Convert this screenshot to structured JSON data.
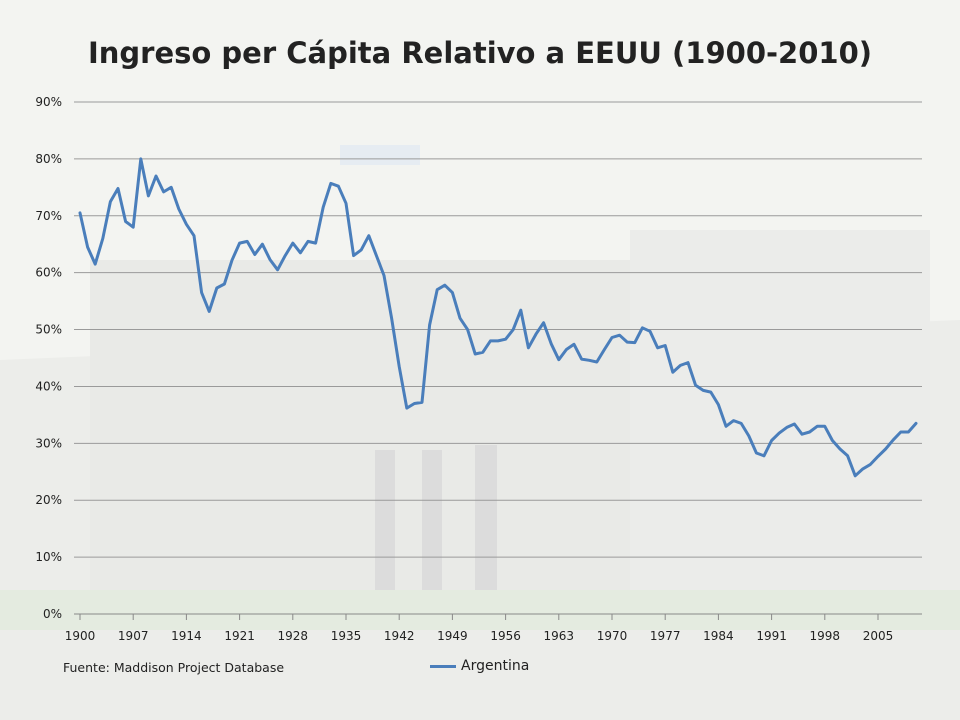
{
  "chart_data": {
    "type": "line",
    "title": "Ingreso per Cápita Relativo a EEUU (1900-2010)",
    "xlabel": "",
    "ylabel": "",
    "source": "Fuente: Maddison Project Database",
    "xlim": [
      1900,
      2010
    ],
    "ylim": [
      0,
      0.9
    ],
    "x_ticks": [
      1900,
      1907,
      1914,
      1921,
      1928,
      1935,
      1942,
      1949,
      1956,
      1963,
      1970,
      1977,
      1984,
      1991,
      1998,
      2005
    ],
    "x_tick_labels": [
      "1900",
      "1907",
      "1914",
      "1921",
      "1928",
      "1935",
      "1942",
      "1949",
      "1956",
      "1963",
      "1970",
      "1977",
      "1984",
      "1991",
      "1998",
      "2005"
    ],
    "y_ticks": [
      0,
      0.1,
      0.2,
      0.3,
      0.4,
      0.5,
      0.6,
      0.7,
      0.8,
      0.9
    ],
    "y_tick_labels": [
      "0%",
      "10%",
      "20%",
      "30%",
      "40%",
      "50%",
      "60%",
      "70%",
      "80%",
      "90%"
    ],
    "grid": "horizontal",
    "legend_position": "bottom-center",
    "series": [
      {
        "name": "Argentina",
        "color": "#4a7ebb",
        "x": [
          1900,
          1901,
          1902,
          1903,
          1904,
          1905,
          1906,
          1907,
          1908,
          1909,
          1910,
          1911,
          1912,
          1913,
          1914,
          1915,
          1916,
          1917,
          1918,
          1919,
          1920,
          1921,
          1922,
          1923,
          1924,
          1925,
          1926,
          1927,
          1928,
          1929,
          1930,
          1931,
          1932,
          1933,
          1934,
          1935,
          1936,
          1937,
          1938,
          1939,
          1940,
          1941,
          1942,
          1943,
          1944,
          1945,
          1946,
          1947,
          1948,
          1949,
          1950,
          1951,
          1952,
          1953,
          1954,
          1955,
          1956,
          1957,
          1958,
          1959,
          1960,
          1961,
          1962,
          1963,
          1964,
          1965,
          1966,
          1967,
          1968,
          1969,
          1970,
          1971,
          1972,
          1973,
          1974,
          1975,
          1976,
          1977,
          1978,
          1979,
          1980,
          1981,
          1982,
          1983,
          1984,
          1985,
          1986,
          1987,
          1988,
          1989,
          1990,
          1991,
          1992,
          1993,
          1994,
          1995,
          1996,
          1997,
          1998,
          1999,
          2000,
          2001,
          2002,
          2003,
          2004,
          2005,
          2006,
          2007,
          2008,
          2009,
          2010
        ],
        "values": [
          0.705,
          0.645,
          0.615,
          0.66,
          0.725,
          0.748,
          0.69,
          0.68,
          0.8,
          0.735,
          0.77,
          0.742,
          0.75,
          0.712,
          0.685,
          0.665,
          0.565,
          0.532,
          0.573,
          0.58,
          0.622,
          0.652,
          0.655,
          0.632,
          0.65,
          0.623,
          0.605,
          0.63,
          0.652,
          0.635,
          0.655,
          0.652,
          0.715,
          0.757,
          0.752,
          0.722,
          0.63,
          0.64,
          0.665,
          0.63,
          0.595,
          0.52,
          0.435,
          0.362,
          0.37,
          0.372,
          0.508,
          0.57,
          0.578,
          0.565,
          0.52,
          0.5,
          0.457,
          0.46,
          0.48,
          0.48,
          0.483,
          0.5,
          0.534,
          0.468,
          0.492,
          0.512,
          0.475,
          0.447,
          0.465,
          0.474,
          0.448,
          0.446,
          0.443,
          0.465,
          0.486,
          0.49,
          0.478,
          0.477,
          0.503,
          0.497,
          0.468,
          0.472,
          0.425,
          0.437,
          0.442,
          0.402,
          0.393,
          0.39,
          0.368,
          0.33,
          0.34,
          0.335,
          0.313,
          0.283,
          0.278,
          0.305,
          0.318,
          0.328,
          0.334,
          0.316,
          0.32,
          0.33,
          0.33,
          0.305,
          0.29,
          0.278,
          0.243,
          0.255,
          0.263,
          0.277,
          0.29,
          0.306,
          0.32,
          0.32,
          0.335
        ]
      }
    ]
  }
}
